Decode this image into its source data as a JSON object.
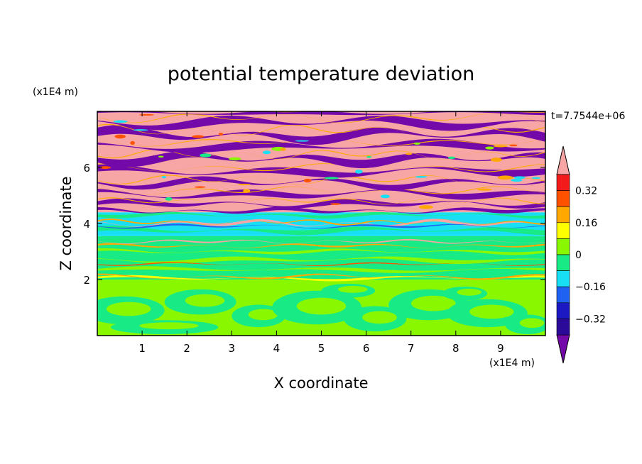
{
  "chart_data": {
    "type": "heatmap",
    "title": "potential temperature deviation",
    "xlabel": "X coordinate",
    "ylabel": "Z coordinate",
    "x_unit": "(x1E4 m)",
    "y_unit": "(x1E4 m)",
    "time_label": "t=7.7544e+06",
    "xlim": [
      0,
      10
    ],
    "ylim": [
      0,
      8
    ],
    "x_ticks": [
      "1",
      "2",
      "3",
      "4",
      "5",
      "6",
      "7",
      "8",
      "9"
    ],
    "y_ticks": [
      "2",
      "4",
      "6"
    ],
    "colorbar": {
      "tick_labels": [
        "0.32",
        "0.16",
        "0",
        "−0.16",
        "−0.32"
      ],
      "levels": [
        -0.4,
        -0.32,
        -0.24,
        -0.16,
        -0.08,
        0,
        0.08,
        0.16,
        0.24,
        0.32,
        0.4
      ],
      "colors": [
        "#2b0a99",
        "#1d19c2",
        "#1f62f2",
        "#19dff5",
        "#18eb86",
        "#89f700",
        "#ffff00",
        "#ffa900",
        "#ff5200",
        "#f21a1a"
      ],
      "under_color": "#7209a8",
      "over_color": "#f7a5a5"
    },
    "bands": [
      {
        "z_min": 0.0,
        "z_max": 2.0,
        "dominant": [
          "#89f700",
          "#18eb86"
        ]
      },
      {
        "z_min": 2.0,
        "z_max": 3.5,
        "dominant": [
          "#18eb86",
          "#89f700"
        ]
      },
      {
        "z_min": 3.5,
        "z_max": 4.4,
        "dominant": [
          "#19dff5",
          "#18eb86"
        ]
      },
      {
        "z_min": 4.4,
        "z_max": 8.0,
        "dominant": [
          "#f7a5a5",
          "#7209a8"
        ]
      }
    ]
  }
}
